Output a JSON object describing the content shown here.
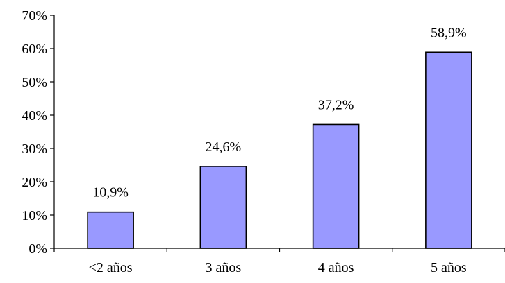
{
  "chart_data": {
    "type": "bar",
    "title": "",
    "xlabel": "",
    "ylabel": "",
    "categories": [
      "<2 años",
      "3 años",
      "4 años",
      "5 años"
    ],
    "values": [
      10.9,
      24.6,
      37.2,
      58.9
    ],
    "value_labels": [
      "10,9%",
      "24,6%",
      "37,2%",
      "58,9%"
    ],
    "ylim": [
      0,
      70
    ],
    "y_ticks": [
      0,
      10,
      20,
      30,
      40,
      50,
      60,
      70
    ],
    "y_tick_labels": [
      "0%",
      "10%",
      "20%",
      "30%",
      "40%",
      "50%",
      "60%",
      "70%"
    ],
    "grid": false,
    "legend": "none",
    "bar_color": "#9999ff"
  }
}
